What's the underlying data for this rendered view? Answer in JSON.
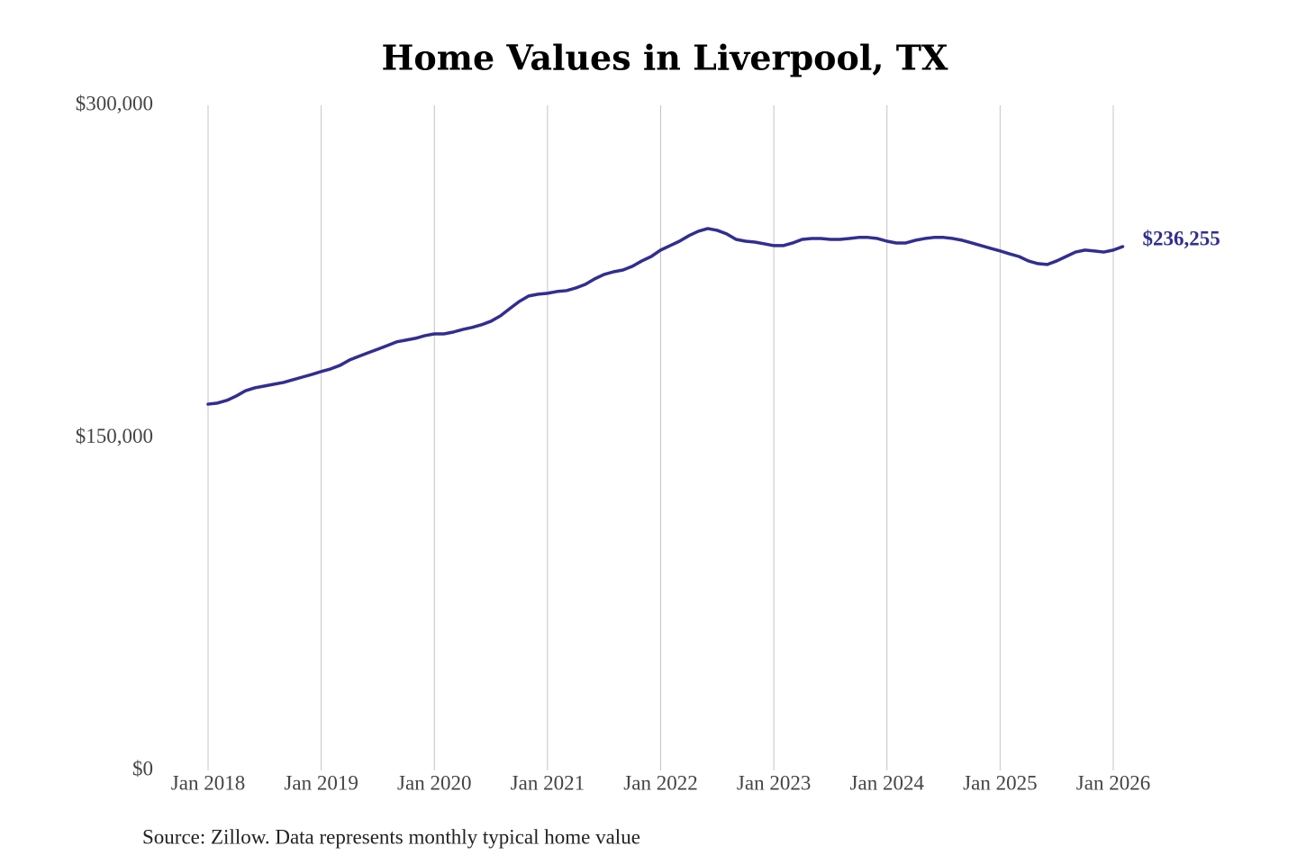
{
  "chart_data": {
    "type": "line",
    "title": "Home Values in Liverpool, TX",
    "source": "Source: Zillow. Data represents monthly typical home value",
    "x": [
      "2018-01",
      "2018-02",
      "2018-03",
      "2018-04",
      "2018-05",
      "2018-06",
      "2018-07",
      "2018-08",
      "2018-09",
      "2018-10",
      "2018-11",
      "2018-12",
      "2019-01",
      "2019-02",
      "2019-03",
      "2019-04",
      "2019-05",
      "2019-06",
      "2019-07",
      "2019-08",
      "2019-09",
      "2019-10",
      "2019-11",
      "2019-12",
      "2020-01",
      "2020-02",
      "2020-03",
      "2020-04",
      "2020-05",
      "2020-06",
      "2020-07",
      "2020-08",
      "2020-09",
      "2020-10",
      "2020-11",
      "2020-12",
      "2021-01",
      "2021-02",
      "2021-03",
      "2021-04",
      "2021-05",
      "2021-06",
      "2021-07",
      "2021-08",
      "2021-09",
      "2021-10",
      "2021-11",
      "2021-12",
      "2022-01",
      "2022-02",
      "2022-03",
      "2022-04",
      "2022-05",
      "2022-06",
      "2022-07",
      "2022-08",
      "2022-09",
      "2022-10",
      "2022-11",
      "2022-12",
      "2023-01",
      "2023-02",
      "2023-03",
      "2023-04",
      "2023-05",
      "2023-06",
      "2023-07",
      "2023-08",
      "2023-09",
      "2023-10",
      "2023-11",
      "2023-12",
      "2024-01",
      "2024-02",
      "2024-03",
      "2024-04",
      "2024-05",
      "2024-06",
      "2024-07",
      "2024-08",
      "2024-09",
      "2024-10",
      "2024-11",
      "2024-12",
      "2025-01",
      "2025-02",
      "2025-03",
      "2025-04",
      "2025-05",
      "2025-06",
      "2025-07",
      "2025-08",
      "2025-09",
      "2025-10",
      "2025-11",
      "2025-12",
      "2026-01",
      "2026-02"
    ],
    "series": [
      {
        "name": "Liverpool, TX",
        "color": "#312e91",
        "values": [
          165200,
          165700,
          166900,
          168900,
          171300,
          172600,
          173400,
          174200,
          175000,
          176200,
          177400,
          178600,
          179900,
          181100,
          182700,
          185100,
          186800,
          188400,
          190000,
          191600,
          193300,
          194100,
          194900,
          196100,
          196900,
          196900,
          197700,
          198900,
          199800,
          201000,
          202600,
          205000,
          208300,
          211500,
          214000,
          214800,
          215200,
          216000,
          216400,
          217600,
          219200,
          221700,
          223700,
          224900,
          225700,
          227400,
          229800,
          231800,
          234700,
          236700,
          238700,
          241200,
          243200,
          244400,
          243600,
          242000,
          239500,
          238700,
          238300,
          237500,
          236700,
          236700,
          237900,
          239500,
          239900,
          239900,
          239500,
          239500,
          239900,
          240400,
          240400,
          239900,
          238700,
          237900,
          237900,
          239100,
          239900,
          240400,
          240400,
          239900,
          239100,
          237900,
          236700,
          235500,
          234300,
          233000,
          231800,
          229800,
          228600,
          228200,
          229800,
          231800,
          233800,
          234700,
          234300,
          233800,
          234700,
          236255
        ],
        "last_value_label": "$236,255"
      }
    ],
    "ylim": [
      0,
      300000
    ],
    "yticks": [
      {
        "value": 0,
        "label": "$0"
      },
      {
        "value": 150000,
        "label": "$150,000"
      },
      {
        "value": 300000,
        "label": "$300,000"
      }
    ],
    "xticks": [
      {
        "value": "2018-01",
        "label": "Jan 2018"
      },
      {
        "value": "2019-01",
        "label": "Jan 2019"
      },
      {
        "value": "2020-01",
        "label": "Jan 2020"
      },
      {
        "value": "2021-01",
        "label": "Jan 2021"
      },
      {
        "value": "2022-01",
        "label": "Jan 2022"
      },
      {
        "value": "2023-01",
        "label": "Jan 2023"
      },
      {
        "value": "2024-01",
        "label": "Jan 2024"
      },
      {
        "value": "2025-01",
        "label": "Jan 2025"
      },
      {
        "value": "2026-01",
        "label": "Jan 2026"
      }
    ],
    "grid": "x"
  }
}
